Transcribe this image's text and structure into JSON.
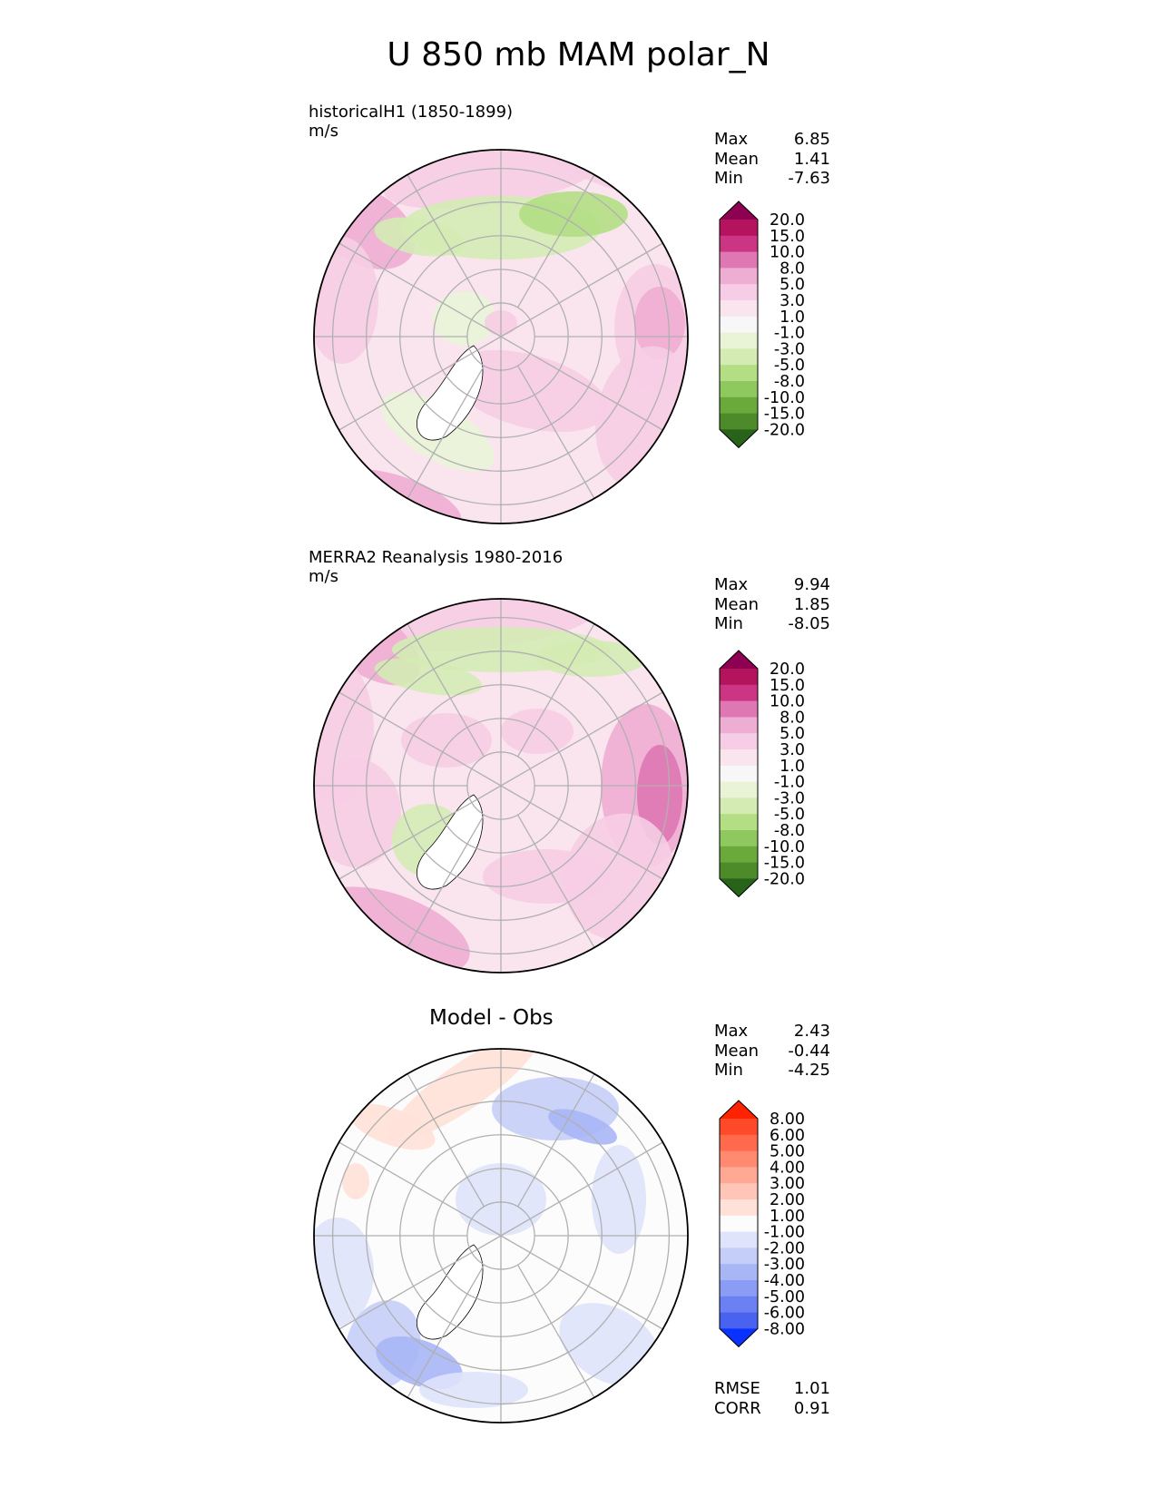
{
  "title": "U 850 mb MAM polar_N",
  "panels": [
    {
      "title": "historicalH1 (1850-1899)",
      "units": "m/s",
      "stats": [
        {
          "label": "Max",
          "value": "6.85"
        },
        {
          "label": "Mean",
          "value": "1.41"
        },
        {
          "label": "Min",
          "value": "-7.63"
        }
      ]
    },
    {
      "title": "MERRA2 Reanalysis 1980-2016",
      "units": "m/s",
      "stats": [
        {
          "label": "Max",
          "value": "9.94"
        },
        {
          "label": "Mean",
          "value": "1.85"
        },
        {
          "label": "Min",
          "value": "-8.05"
        }
      ]
    },
    {
      "title": "Model - Obs",
      "stats": [
        {
          "label": "Max",
          "value": "2.43"
        },
        {
          "label": "Mean",
          "value": "-0.44"
        },
        {
          "label": "Min",
          "value": "-4.25"
        }
      ],
      "metrics": [
        {
          "label": "RMSE",
          "value": "1.01"
        },
        {
          "label": "CORR",
          "value": "0.91"
        }
      ]
    }
  ],
  "chart_data": [
    {
      "type": "heatmap",
      "projection": "north polar stereographic",
      "variable": "U 850 mb",
      "season": "MAM",
      "title": "historicalH1 (1850-1899)",
      "units": "m/s",
      "max": 6.85,
      "mean": 1.41,
      "min": -7.63,
      "colorbar": {
        "ticks": [
          "20.0",
          "15.0",
          "10.0",
          "8.0",
          "5.0",
          "3.0",
          "1.0",
          "-1.0",
          "-3.0",
          "-5.0",
          "-8.0",
          "-10.0",
          "-15.0",
          "-20.0"
        ],
        "colors": [
          "#8e0152",
          "#b4135e",
          "#cc3584",
          "#df77b3",
          "#eeadd3",
          "#f6cde4",
          "#fae5ef",
          "#f7f7f7",
          "#e9f4d7",
          "#d4ebb4",
          "#b3de84",
          "#8fc85e",
          "#6aaa3b",
          "#4d8b2a",
          "#276419"
        ]
      }
    },
    {
      "type": "heatmap",
      "projection": "north polar stereographic",
      "variable": "U 850 mb",
      "season": "MAM",
      "title": "MERRA2 Reanalysis 1980-2016",
      "units": "m/s",
      "max": 9.94,
      "mean": 1.85,
      "min": -8.05,
      "colorbar": {
        "ticks": [
          "20.0",
          "15.0",
          "10.0",
          "8.0",
          "5.0",
          "3.0",
          "1.0",
          "-1.0",
          "-3.0",
          "-5.0",
          "-8.0",
          "-10.0",
          "-15.0",
          "-20.0"
        ],
        "colors": [
          "#8e0152",
          "#b4135e",
          "#cc3584",
          "#df77b3",
          "#eeadd3",
          "#f6cde4",
          "#fae5ef",
          "#f7f7f7",
          "#e9f4d7",
          "#d4ebb4",
          "#b3de84",
          "#8fc85e",
          "#6aaa3b",
          "#4d8b2a",
          "#276419"
        ]
      }
    },
    {
      "type": "heatmap",
      "projection": "north polar stereographic",
      "variable": "U 850 mb",
      "season": "MAM",
      "title": "Model - Obs",
      "max": 2.43,
      "mean": -0.44,
      "min": -4.25,
      "rmse": 1.01,
      "corr": 0.91,
      "colorbar": {
        "ticks": [
          "8.00",
          "6.00",
          "5.00",
          "4.00",
          "3.00",
          "2.00",
          "1.00",
          "-1.00",
          "-2.00",
          "-3.00",
          "-4.00",
          "-5.00",
          "-6.00",
          "-8.00"
        ],
        "colors": [
          "#ff2200",
          "#ff4a2a",
          "#ff6a4c",
          "#ff8a70",
          "#ffa894",
          "#ffc5b6",
          "#ffe1d8",
          "#fcfcfc",
          "#dfe3fb",
          "#c5cef8",
          "#a8b6f6",
          "#8a9cf4",
          "#6b80f2",
          "#4a62f0",
          "#0a32ff"
        ]
      }
    }
  ]
}
